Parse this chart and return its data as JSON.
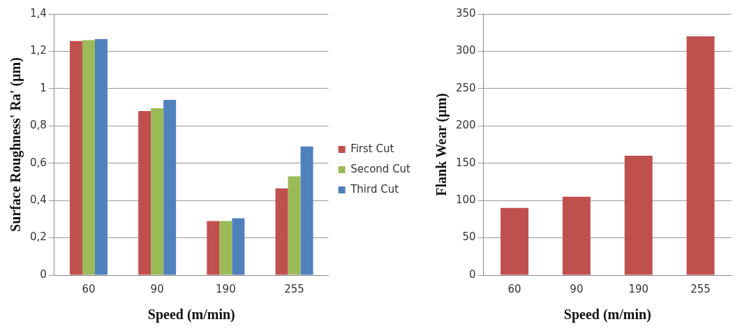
{
  "chart_data": [
    {
      "type": "bar",
      "xlabel": "Speed (m/min)",
      "ylabel": "Surface Roughness' Ra' (µm)",
      "categories": [
        "60",
        "90",
        "190",
        "255"
      ],
      "series": [
        {
          "name": "First Cut",
          "color": "#c0504d",
          "values": [
            1.255,
            0.88,
            0.29,
            0.465
          ]
        },
        {
          "name": "Second Cut",
          "color": "#9bbb59",
          "values": [
            1.26,
            0.895,
            0.29,
            0.53
          ]
        },
        {
          "name": "Third Cut",
          "color": "#4f81bd",
          "values": [
            1.265,
            0.94,
            0.305,
            0.69
          ]
        }
      ],
      "ylim": [
        0,
        1.4
      ],
      "yticks": [
        0,
        {
          "value": 0.2,
          "label": "0,2"
        },
        {
          "value": 0.4,
          "label": "0,4"
        },
        {
          "value": 0.6,
          "label": "0,6"
        },
        {
          "value": 0.8,
          "label": "0,8"
        },
        1,
        {
          "value": 1.2,
          "label": "1,2"
        },
        {
          "value": 1.4,
          "label": "1,4"
        }
      ],
      "grid": "y",
      "legend": "right"
    },
    {
      "type": "bar",
      "xlabel": "Speed (m/min)",
      "ylabel": "Flank Wear (µm)",
      "categories": [
        "60",
        "90",
        "190",
        "255"
      ],
      "values": [
        90,
        105,
        160,
        320
      ],
      "color": "#c0504d",
      "ylim": [
        0,
        350
      ],
      "yticks": [
        0,
        50,
        100,
        150,
        200,
        250,
        300,
        350
      ],
      "grid": "y"
    }
  ]
}
